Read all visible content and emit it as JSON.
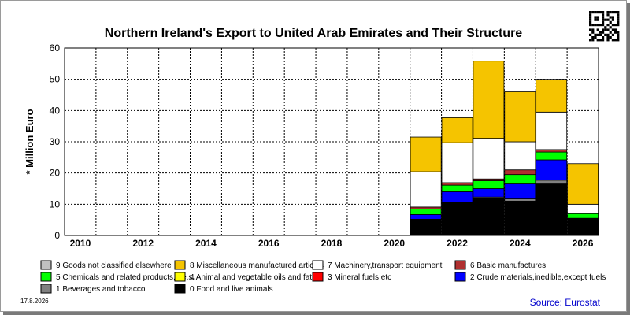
{
  "chart_data": {
    "type": "bar",
    "stacked": true,
    "title": "Northern Ireland's Export to United Arab Emirates and Their Structure",
    "ylabel": "* Million Euro",
    "xlabel": "",
    "ylim": [
      0,
      60
    ],
    "yticks": [
      0,
      10,
      20,
      30,
      40,
      50,
      60
    ],
    "grid": true,
    "legend_position": "bottom",
    "x_labels": [
      "2010",
      "2012",
      "2014",
      "2016",
      "2018",
      "2020",
      "2022",
      "2024",
      "2026"
    ],
    "categories": [
      "2021",
      "2022",
      "2023",
      "2024",
      "2025",
      "2026"
    ],
    "series": [
      {
        "name": "0 Food and live animals",
        "color": "#000000",
        "values": [
          5,
          10.3,
          12,
          11,
          16.5,
          5.5
        ]
      },
      {
        "name": "1 Beverages and tobacco",
        "color": "#808080",
        "values": [
          0.2,
          0.2,
          0.3,
          0.7,
          1.2,
          0
        ]
      },
      {
        "name": "2 Crude materials,inedible,except fuels",
        "color": "#0000ff",
        "values": [
          1.5,
          3.5,
          2.7,
          4.8,
          6.5,
          0
        ]
      },
      {
        "name": "3 Mineral fuels etc",
        "color": "#ff0000",
        "values": [
          0,
          0,
          0,
          0,
          0,
          0
        ]
      },
      {
        "name": "4 Animal and vegetable oils and fats",
        "color": "#ffff00",
        "values": [
          0,
          0,
          0,
          0,
          0,
          0
        ]
      },
      {
        "name": "5 Chemicals and related products,n.e.s.",
        "color": "#00ff00",
        "values": [
          1.8,
          2.1,
          2.5,
          3,
          2.5,
          1.5
        ]
      },
      {
        "name": "6 Basic manufactures",
        "color": "#b03030",
        "values": [
          0.6,
          0.8,
          0.6,
          1.5,
          0.8,
          0
        ]
      },
      {
        "name": "7 Machinery,transport equipment",
        "color": "#ffffff",
        "values": [
          11.3,
          12.8,
          13,
          9,
          12,
          3
        ]
      },
      {
        "name": "8 Miscellaneous manufactured articles",
        "color": "#f5c400",
        "values": [
          11.1,
          8,
          24.7,
          16,
          10.5,
          13
        ]
      },
      {
        "name": "9 Goods not classified elsewhere",
        "color": "#c0c0c0",
        "values": [
          0,
          0,
          0,
          0,
          0,
          0
        ]
      }
    ],
    "legend_order": [
      "9 Goods not classified elsewhere",
      "8 Miscellaneous manufactured articles",
      "7 Machinery,transport equipment",
      "6 Basic manufactures",
      "5 Chemicals and related products,n.e.s.",
      "4 Animal and vegetable oils and fats",
      "3 Mineral fuels etc",
      "2 Crude materials,inedible,except fuels",
      "1 Beverages and tobacco",
      "0 Food and live animals"
    ]
  },
  "footer": {
    "date": "17.8.2026",
    "source": "Source: Eurostat"
  },
  "icons": {
    "qr": "qr-code-icon"
  }
}
